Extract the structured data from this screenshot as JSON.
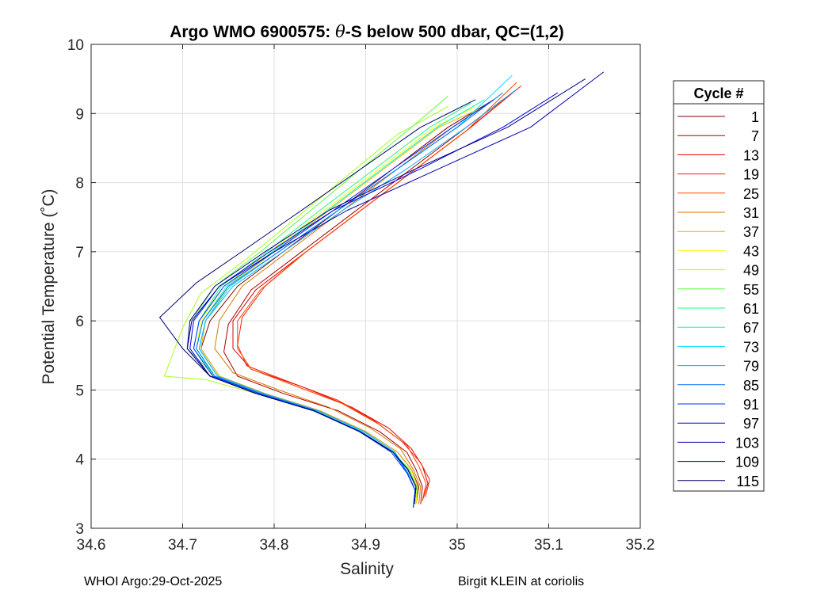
{
  "chart_data": {
    "type": "line",
    "title": "Argo WMO 6900575: θ-S below 500 dbar,  QC=(1,2)",
    "title_parts": {
      "prefix": "Argo WMO 6900575: ",
      "theta": "θ",
      "suffix": "-S below 500 dbar,  QC=(1,2)"
    },
    "xlabel": "Salinity",
    "ylabel": "Potential Temperature (˚C)",
    "xlim": [
      34.6,
      35.2
    ],
    "ylim": [
      3,
      10
    ],
    "xticks": [
      34.6,
      34.7,
      34.8,
      34.9,
      35,
      35.1,
      35.2
    ],
    "xtick_labels": [
      "34.6",
      "34.7",
      "34.8",
      "34.9",
      "35",
      "35.1",
      "35.2"
    ],
    "yticks": [
      3,
      4,
      5,
      6,
      7,
      8,
      9,
      10
    ],
    "ytick_labels": [
      "3",
      "4",
      "5",
      "6",
      "7",
      "8",
      "9",
      "10"
    ],
    "grid": true,
    "legend_title": "Cycle #",
    "legend_position": "right-outside",
    "series": [
      {
        "name": "1",
        "color": "#7a0000",
        "salinity": [
          34.955,
          34.958,
          34.95,
          34.935,
          34.9,
          34.85,
          34.79,
          34.74,
          34.72,
          34.73,
          34.76,
          34.81,
          34.87,
          34.93,
          34.99,
          35.04
        ],
        "theta": [
          3.35,
          3.6,
          3.85,
          4.1,
          4.4,
          4.7,
          4.95,
          5.2,
          5.6,
          6.0,
          6.5,
          7.0,
          7.6,
          8.2,
          8.8,
          9.2
        ]
      },
      {
        "name": "7",
        "color": "#a80000",
        "salinity": [
          34.96,
          34.962,
          34.955,
          34.945,
          34.915,
          34.87,
          34.81,
          34.76,
          34.745,
          34.75,
          34.775,
          34.825,
          34.885,
          34.945,
          35.005,
          35.05
        ],
        "theta": [
          3.35,
          3.6,
          3.85,
          4.1,
          4.4,
          4.7,
          4.95,
          5.2,
          5.55,
          5.95,
          6.45,
          6.95,
          7.55,
          8.15,
          8.75,
          9.2
        ]
      },
      {
        "name": "13",
        "color": "#dd0000",
        "salinity": [
          34.962,
          34.968,
          34.962,
          34.95,
          34.925,
          34.885,
          34.83,
          34.775,
          34.755,
          34.755,
          34.78,
          34.83,
          34.89,
          34.95,
          35.01,
          35.06
        ],
        "theta": [
          3.4,
          3.65,
          3.9,
          4.15,
          4.45,
          4.75,
          5.05,
          5.3,
          5.6,
          6.0,
          6.45,
          6.95,
          7.55,
          8.15,
          8.75,
          9.3
        ]
      },
      {
        "name": "19",
        "color": "#ff2000",
        "salinity": [
          34.965,
          34.97,
          34.96,
          34.94,
          34.91,
          34.87,
          34.82,
          34.77,
          34.76,
          34.765,
          34.79,
          34.835,
          34.895,
          34.955,
          35.015,
          35.07
        ],
        "theta": [
          3.45,
          3.7,
          3.95,
          4.25,
          4.55,
          4.85,
          5.1,
          5.35,
          5.65,
          6.05,
          6.5,
          7.0,
          7.6,
          8.2,
          8.8,
          9.4
        ]
      },
      {
        "name": "25",
        "color": "#ff4a00",
        "salinity": [
          34.962,
          34.966,
          34.958,
          34.945,
          34.915,
          34.875,
          34.825,
          34.775,
          34.76,
          34.76,
          34.785,
          34.83,
          34.89,
          34.95,
          35.01,
          35.065
        ],
        "theta": [
          3.4,
          3.65,
          3.9,
          4.2,
          4.5,
          4.8,
          5.05,
          5.3,
          5.6,
          6.0,
          6.45,
          6.95,
          7.55,
          8.15,
          8.75,
          9.45
        ]
      },
      {
        "name": "31",
        "color": "#d87800",
        "salinity": [
          34.958,
          34.96,
          34.952,
          34.938,
          34.905,
          34.86,
          34.805,
          34.755,
          34.735,
          34.74,
          34.765,
          34.815,
          34.875,
          34.935,
          34.995,
          35.04
        ],
        "theta": [
          3.35,
          3.6,
          3.85,
          4.15,
          4.45,
          4.75,
          5.0,
          5.25,
          5.6,
          6.0,
          6.5,
          7.0,
          7.6,
          8.2,
          8.8,
          9.2
        ]
      },
      {
        "name": "37",
        "color": "#e8b400",
        "salinity": [
          34.955,
          34.957,
          34.95,
          34.935,
          34.9,
          34.85,
          34.79,
          34.74,
          34.72,
          34.725,
          34.75,
          34.8,
          34.86,
          34.92,
          34.98,
          35.03
        ],
        "theta": [
          3.35,
          3.6,
          3.85,
          4.1,
          4.4,
          4.7,
          4.95,
          5.2,
          5.6,
          6.0,
          6.5,
          7.0,
          7.6,
          8.2,
          8.8,
          9.1
        ]
      },
      {
        "name": "43",
        "color": "#ffff00",
        "salinity": [
          34.955,
          34.956,
          34.948,
          34.93,
          34.895,
          34.845,
          34.785,
          34.735,
          34.715,
          34.72,
          34.745,
          34.795,
          34.855,
          34.915,
          34.975,
          35.02
        ],
        "theta": [
          3.35,
          3.6,
          3.85,
          4.1,
          4.4,
          4.7,
          4.95,
          5.2,
          5.6,
          6.0,
          6.5,
          7.0,
          7.6,
          8.2,
          8.8,
          9.1
        ]
      },
      {
        "name": "49",
        "color": "#a8ff20",
        "salinity": [
          34.954,
          34.956,
          34.948,
          34.93,
          34.895,
          34.845,
          34.78,
          34.725,
          34.68,
          34.7,
          34.72,
          34.77,
          34.825,
          34.88,
          34.935,
          34.99
        ],
        "theta": [
          3.35,
          3.6,
          3.85,
          4.1,
          4.4,
          4.7,
          4.95,
          5.15,
          5.2,
          5.9,
          6.4,
          6.9,
          7.5,
          8.1,
          8.7,
          9.1
        ]
      },
      {
        "name": "55",
        "color": "#60ff40",
        "salinity": [
          34.953,
          34.955,
          34.947,
          34.93,
          34.895,
          34.845,
          34.785,
          34.735,
          34.705,
          34.71,
          34.735,
          34.785,
          34.84,
          34.895,
          34.95,
          34.99
        ],
        "theta": [
          3.35,
          3.6,
          3.85,
          4.1,
          4.4,
          4.7,
          4.95,
          5.2,
          5.6,
          6.0,
          6.5,
          7.0,
          7.6,
          8.2,
          8.8,
          9.25
        ]
      },
      {
        "name": "61",
        "color": "#20ff80",
        "salinity": [
          34.953,
          34.955,
          34.947,
          34.93,
          34.895,
          34.845,
          34.785,
          34.735,
          34.712,
          34.718,
          34.742,
          34.792,
          34.85,
          34.91,
          34.97,
          35.015
        ],
        "theta": [
          3.35,
          3.6,
          3.85,
          4.1,
          4.4,
          4.7,
          4.95,
          5.2,
          5.6,
          6.0,
          6.5,
          7.0,
          7.6,
          8.2,
          8.8,
          9.15
        ]
      },
      {
        "name": "67",
        "color": "#00ffc0",
        "salinity": [
          34.952,
          34.954,
          34.946,
          34.93,
          34.895,
          34.845,
          34.785,
          34.735,
          34.715,
          34.722,
          34.748,
          34.798,
          34.858,
          34.918,
          34.978,
          35.03
        ],
        "theta": [
          3.3,
          3.55,
          3.8,
          4.1,
          4.4,
          4.7,
          4.95,
          5.2,
          5.6,
          6.0,
          6.5,
          7.0,
          7.6,
          8.2,
          8.8,
          9.2
        ]
      },
      {
        "name": "73",
        "color": "#00e0ff",
        "salinity": [
          34.952,
          34.954,
          34.946,
          34.932,
          34.898,
          34.848,
          34.788,
          34.738,
          34.718,
          34.725,
          34.752,
          34.805,
          34.87,
          34.935,
          35.0,
          35.06
        ],
        "theta": [
          3.3,
          3.55,
          3.8,
          4.1,
          4.4,
          4.7,
          4.95,
          5.2,
          5.6,
          6.0,
          6.5,
          7.0,
          7.6,
          8.2,
          8.8,
          9.55
        ]
      },
      {
        "name": "79",
        "color": "#00b0ff",
        "salinity": [
          34.952,
          34.954,
          34.946,
          34.932,
          34.898,
          34.848,
          34.788,
          34.738,
          34.718,
          34.725,
          34.755,
          34.81,
          34.875,
          34.945,
          35.01,
          35.065
        ],
        "theta": [
          3.3,
          3.55,
          3.8,
          4.1,
          4.4,
          4.7,
          4.95,
          5.2,
          5.6,
          6.0,
          6.5,
          7.0,
          7.6,
          8.2,
          8.8,
          9.35
        ]
      },
      {
        "name": "85",
        "color": "#0070ff",
        "salinity": [
          34.952,
          34.954,
          34.946,
          34.93,
          34.895,
          34.845,
          34.785,
          34.735,
          34.715,
          34.722,
          34.75,
          34.805,
          34.87,
          34.935,
          35.0,
          35.05
        ],
        "theta": [
          3.3,
          3.55,
          3.8,
          4.1,
          4.4,
          4.7,
          4.95,
          5.2,
          5.6,
          6.0,
          6.5,
          7.0,
          7.6,
          8.2,
          8.8,
          9.3
        ]
      },
      {
        "name": "91",
        "color": "#0030ff",
        "salinity": [
          34.952,
          34.954,
          34.945,
          34.928,
          34.893,
          34.843,
          34.783,
          34.733,
          34.712,
          34.718,
          34.745,
          34.8,
          34.865,
          34.93,
          34.995,
          35.04
        ],
        "theta": [
          3.3,
          3.55,
          3.8,
          4.1,
          4.4,
          4.7,
          4.95,
          5.2,
          5.6,
          6.0,
          6.5,
          7.0,
          7.6,
          8.2,
          8.8,
          9.2
        ]
      },
      {
        "name": "97",
        "color": "#0000e0",
        "salinity": [
          34.953,
          34.955,
          34.946,
          34.93,
          34.893,
          34.843,
          34.78,
          34.73,
          34.708,
          34.712,
          34.74,
          34.795,
          34.865,
          34.96,
          35.05,
          35.11
        ],
        "theta": [
          3.35,
          3.6,
          3.85,
          4.1,
          4.4,
          4.7,
          4.95,
          5.2,
          5.6,
          6.0,
          6.5,
          7.0,
          7.6,
          8.2,
          8.8,
          9.3
        ]
      },
      {
        "name": "103",
        "color": "#0000b0",
        "salinity": [
          34.953,
          34.955,
          34.946,
          34.93,
          34.893,
          34.843,
          34.78,
          34.73,
          34.705,
          34.71,
          34.74,
          34.8,
          34.88,
          34.98,
          35.08,
          35.16
        ],
        "theta": [
          3.35,
          3.6,
          3.85,
          4.1,
          4.4,
          4.7,
          4.95,
          5.2,
          5.6,
          6.0,
          6.5,
          7.0,
          7.6,
          8.2,
          8.8,
          9.6
        ]
      },
      {
        "name": "109",
        "color": "#000080",
        "salinity": [
          34.953,
          34.955,
          34.946,
          34.93,
          34.893,
          34.843,
          34.78,
          34.73,
          34.705,
          34.708,
          34.735,
          34.79,
          34.86,
          34.955,
          35.055,
          35.14
        ],
        "theta": [
          3.35,
          3.6,
          3.85,
          4.1,
          4.4,
          4.7,
          4.95,
          5.2,
          5.6,
          6.0,
          6.5,
          7.0,
          7.6,
          8.2,
          8.8,
          9.5
        ]
      },
      {
        "name": "115",
        "color": "#00006a",
        "salinity": [
          34.953,
          34.955,
          34.946,
          34.93,
          34.893,
          34.843,
          34.78,
          34.73,
          34.7,
          34.675,
          34.715,
          34.77,
          34.83,
          34.895,
          34.96,
          35.02
        ],
        "theta": [
          3.35,
          3.6,
          3.85,
          4.1,
          4.4,
          4.7,
          4.95,
          5.2,
          5.6,
          6.05,
          6.55,
          7.05,
          7.6,
          8.2,
          8.8,
          9.2
        ]
      }
    ]
  },
  "footer": {
    "left": "WHOI Argo:29-Oct-2025",
    "right": "Birgit KLEIN at coriolis"
  }
}
